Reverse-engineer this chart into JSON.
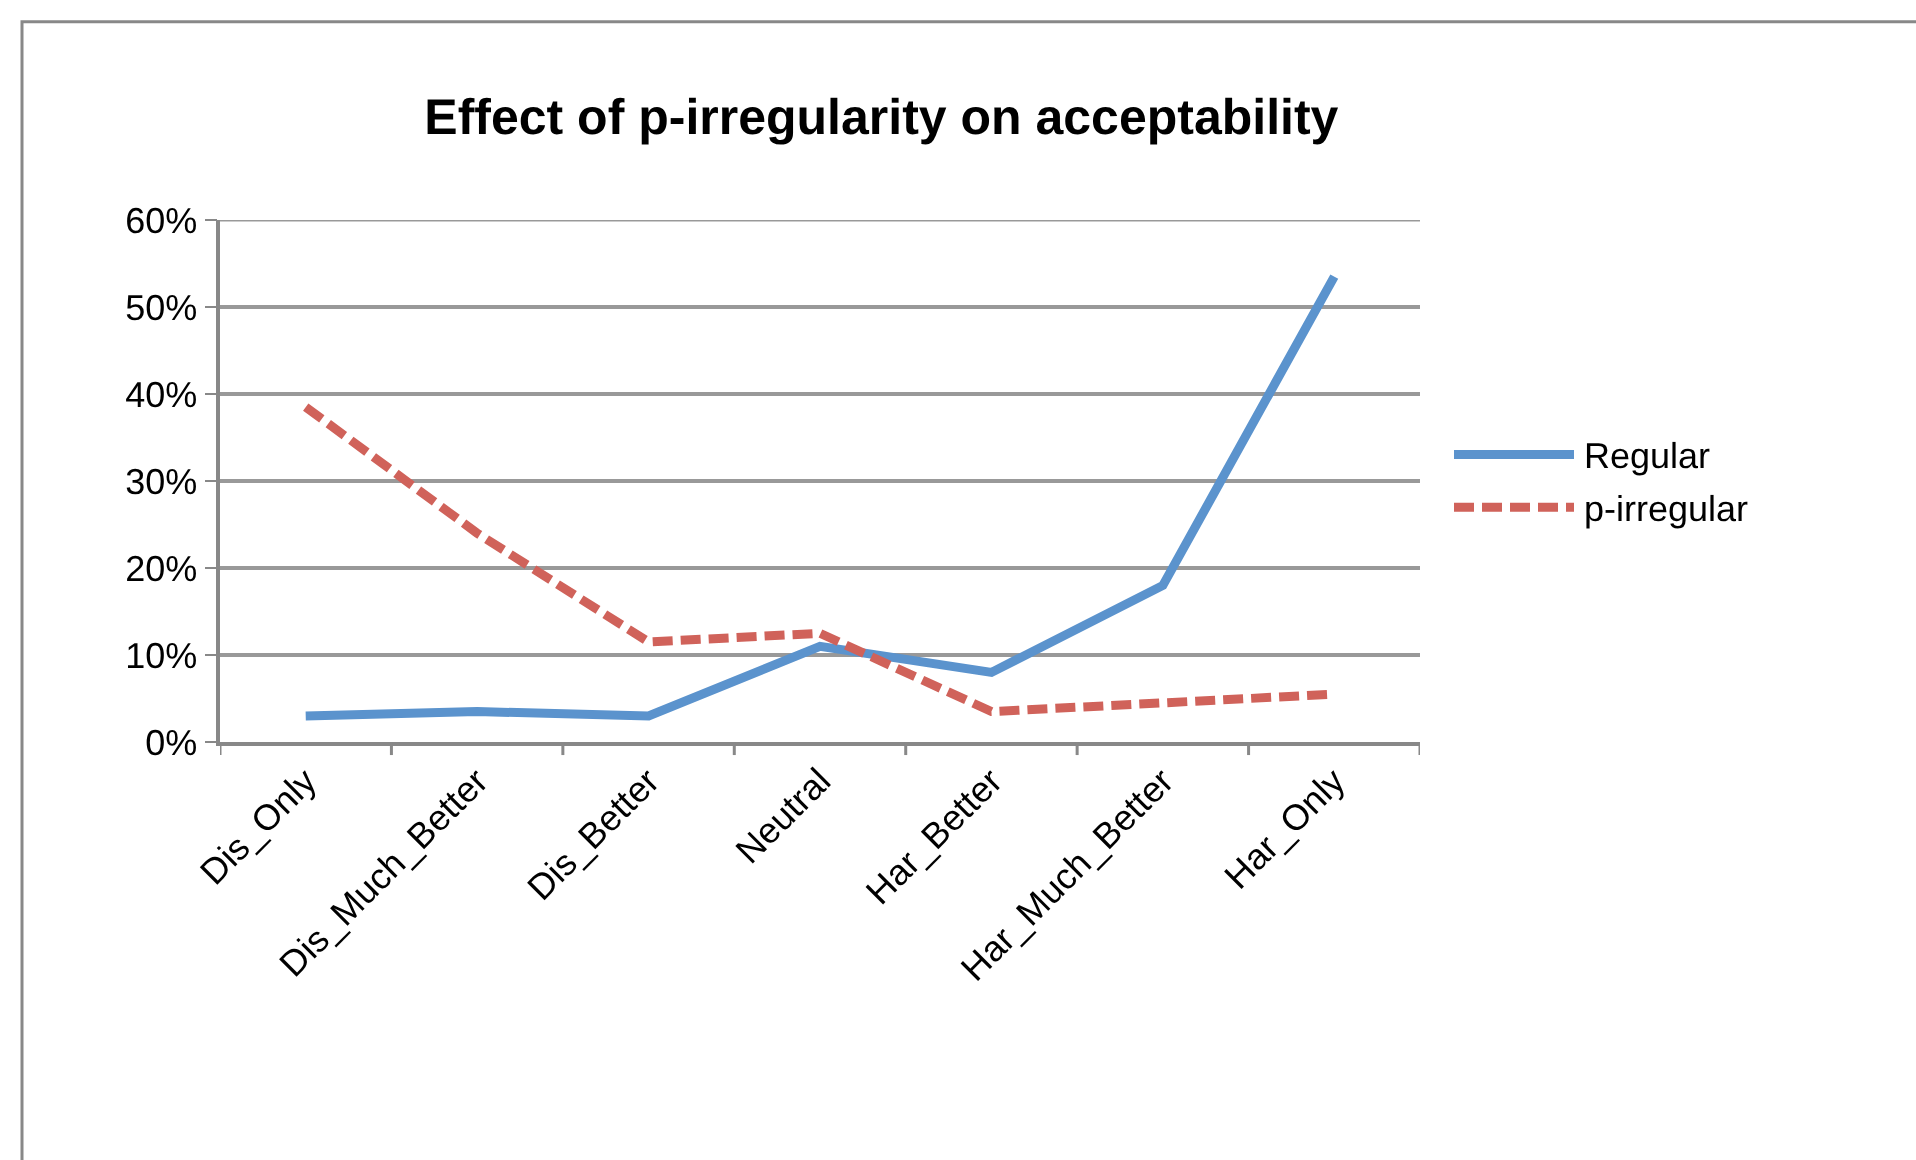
{
  "chart_data": {
    "type": "line",
    "title": "Effect of p-irregularity on acceptability",
    "categories": [
      "Dis_Only",
      "Dis_Much_Better",
      "Dis_Better",
      "Neutral",
      "Har_Better",
      "Har_Much_Better",
      "Har_Only"
    ],
    "series": [
      {
        "name": "Regular",
        "color": "#5b93cd",
        "values": [
          3,
          3.5,
          3,
          11,
          8,
          18,
          53.5
        ],
        "line_style": "solid"
      },
      {
        "name": "p-irregular",
        "color": "#d0625a",
        "values": [
          38.5,
          24,
          11.5,
          12.5,
          3.5,
          4.5,
          5.5
        ],
        "line_style": "dashed"
      }
    ],
    "ylim": [
      0,
      60
    ],
    "yticks": [
      {
        "value": 0,
        "label": "0%"
      },
      {
        "value": 10,
        "label": "10%"
      },
      {
        "value": 20,
        "label": "20%"
      },
      {
        "value": 30,
        "label": "30%"
      },
      {
        "value": 40,
        "label": "40%"
      },
      {
        "value": 50,
        "label": "50%"
      },
      {
        "value": 60,
        "label": "60%"
      }
    ],
    "grid": "y",
    "legend": "right",
    "marker": "none"
  }
}
